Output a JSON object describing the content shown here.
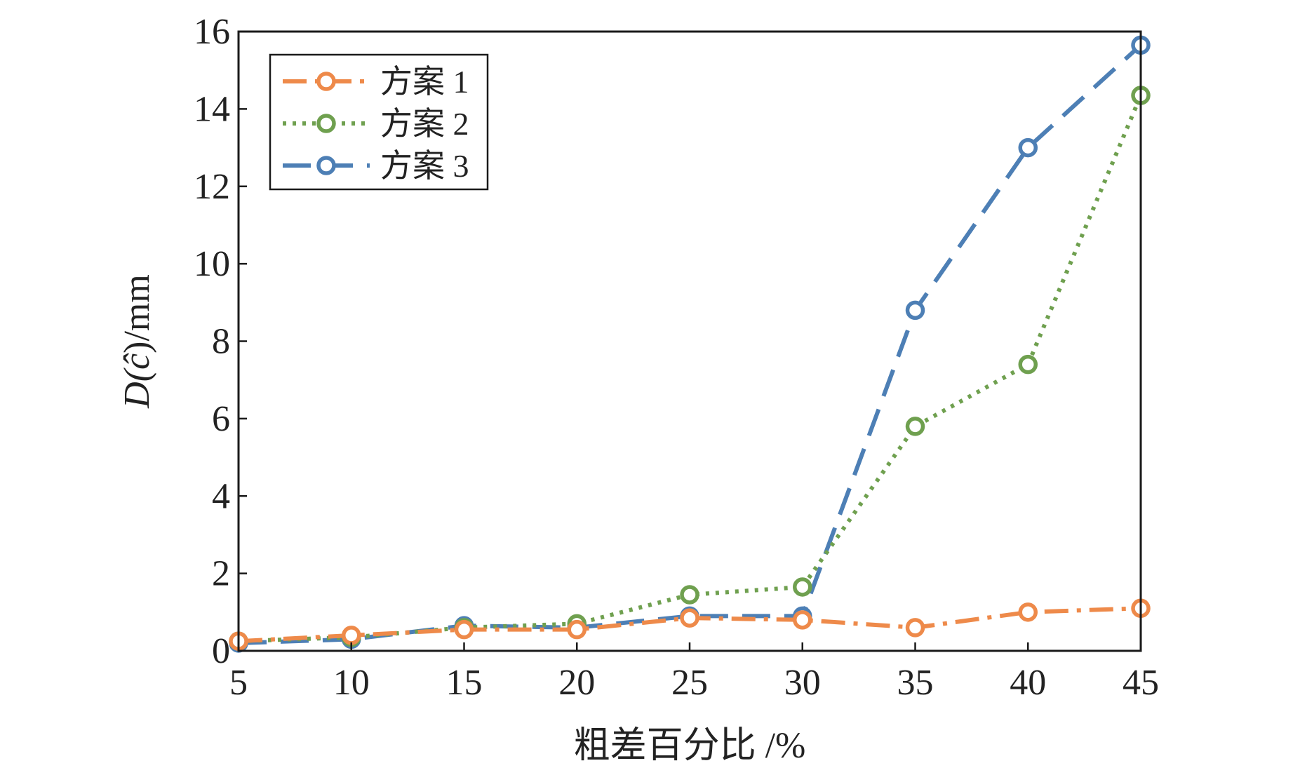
{
  "chart_data": {
    "type": "line",
    "title": "",
    "xlabel": "粗差百分比 /%",
    "ylabel_prefix": "D(",
    "ylabel_symbol": "ĉ",
    "ylabel_suffix": ")/mm",
    "x": [
      5,
      10,
      15,
      20,
      25,
      30,
      35,
      40,
      45
    ],
    "xlim": [
      5,
      45
    ],
    "ylim": [
      0,
      16
    ],
    "xticks": [
      "5",
      "10",
      "15",
      "20",
      "25",
      "30",
      "35",
      "40",
      "45"
    ],
    "yticks": [
      "0",
      "2",
      "4",
      "6",
      "8",
      "10",
      "12",
      "14",
      "16"
    ],
    "grid": false,
    "legend_position": "top-left",
    "series": [
      {
        "name": "方案 1",
        "color": "#ee8a4a",
        "line_style": "dash-dot",
        "values": [
          0.25,
          0.4,
          0.55,
          0.55,
          0.85,
          0.8,
          0.6,
          1.0,
          1.1
        ]
      },
      {
        "name": "方案 2",
        "color": "#6fa04f",
        "line_style": "dotted",
        "values": [
          0.25,
          0.35,
          0.6,
          0.7,
          1.45,
          1.65,
          5.8,
          7.4,
          14.35
        ]
      },
      {
        "name": "方案 3",
        "color": "#4d7fb5",
        "line_style": "dashed",
        "values": [
          0.2,
          0.3,
          0.65,
          0.6,
          0.9,
          0.9,
          8.8,
          13.0,
          15.65
        ]
      }
    ]
  }
}
